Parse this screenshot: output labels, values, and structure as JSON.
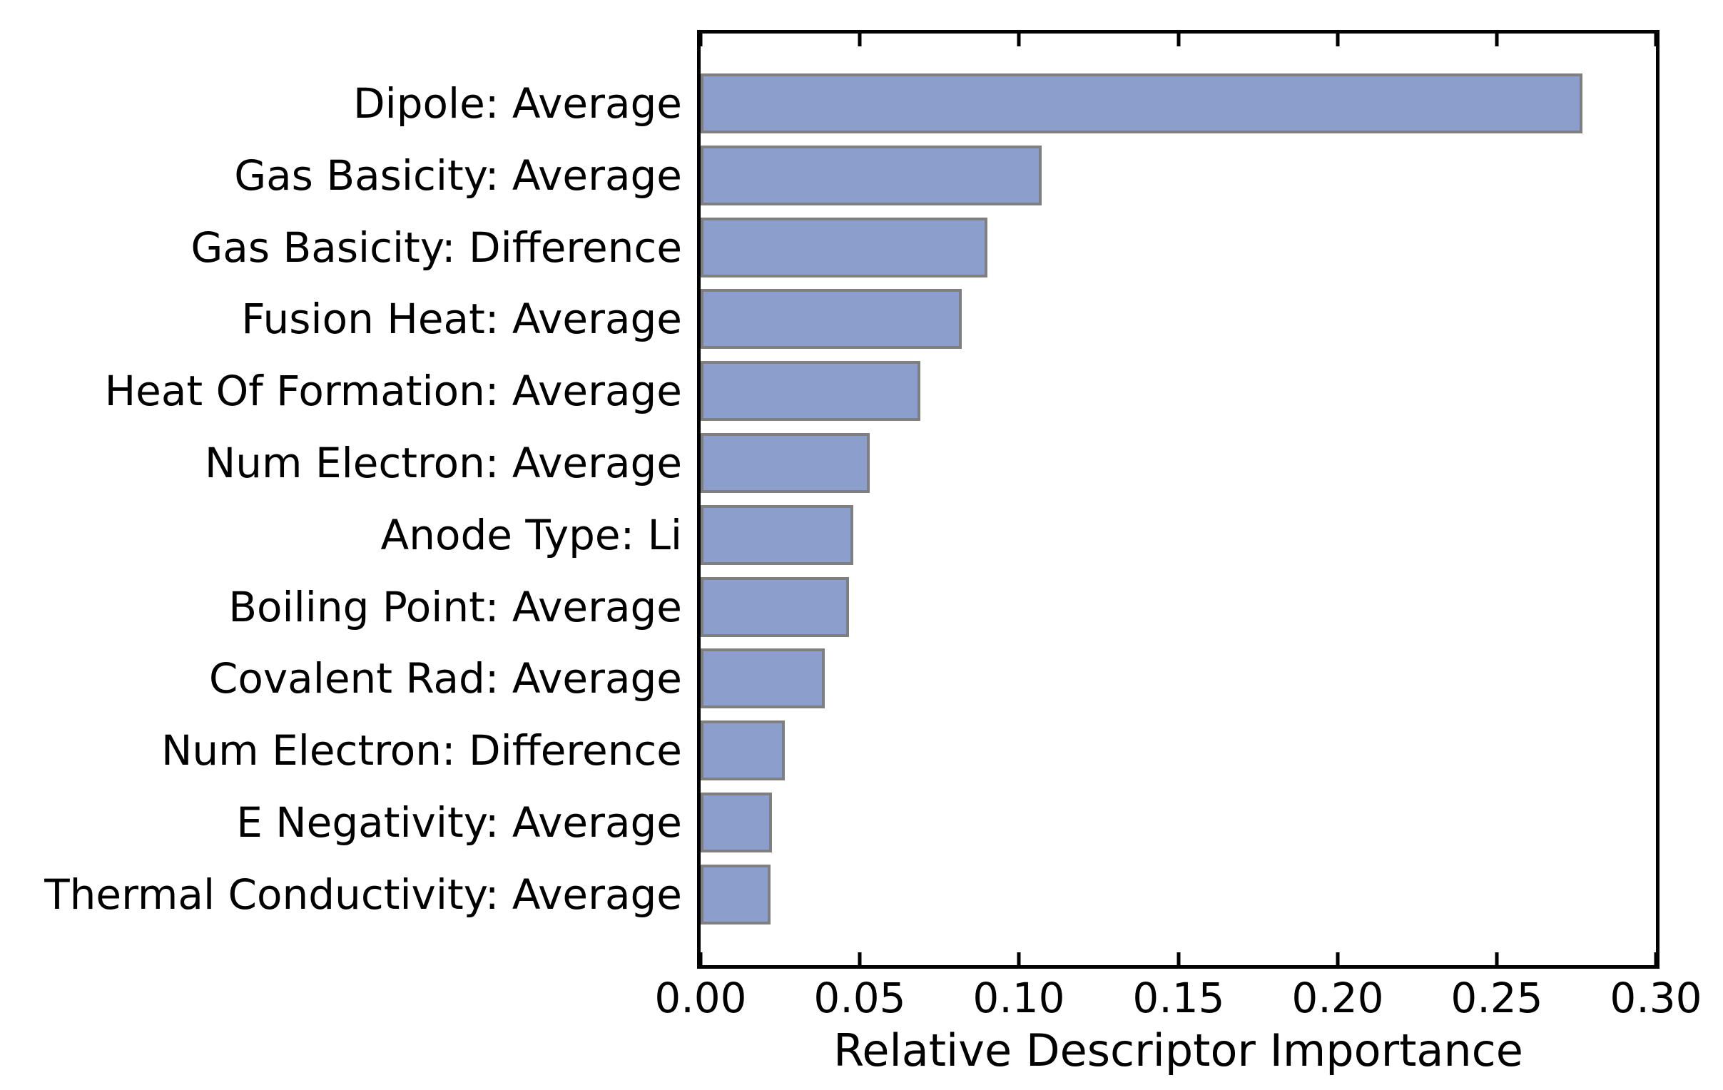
{
  "figure": {
    "background": "#ffffff"
  },
  "chart_data": {
    "type": "bar",
    "orientation": "horizontal",
    "title": "",
    "xlabel": "Relative Descriptor Importance",
    "ylabel": "",
    "xlim": [
      0.0,
      0.3
    ],
    "xticks": [
      0.0,
      0.05,
      0.1,
      0.15,
      0.2,
      0.25,
      0.3
    ],
    "xtick_labels": [
      "0.00",
      "0.05",
      "0.10",
      "0.15",
      "0.20",
      "0.25",
      "0.30"
    ],
    "grid": false,
    "legend": null,
    "ticks_inward_top_and_bottom": true,
    "categories": [
      "Dipole: Average",
      "Gas Basicity: Average",
      "Gas Basicity: Difference",
      "Fusion Heat: Average",
      "Heat Of Formation: Average",
      "Num Electron: Average",
      "Anode Type: Li",
      "Boiling Point: Average",
      "Covalent Rad: Average",
      "Num Electron: Difference",
      "E Negativity: Average",
      "Thermal Conductivity: Average"
    ],
    "values": [
      0.277,
      0.107,
      0.09,
      0.082,
      0.069,
      0.053,
      0.048,
      0.0465,
      0.039,
      0.0265,
      0.0223,
      0.0219
    ],
    "bar_color": "#8C9ECB",
    "bar_edge_color": "#7f7f7f",
    "axis_color": "#000000",
    "text_color": "#000000"
  }
}
